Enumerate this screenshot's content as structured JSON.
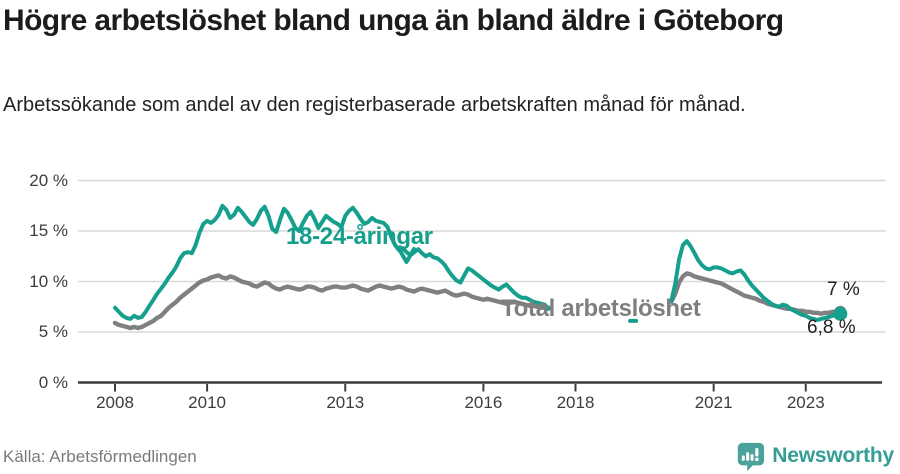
{
  "header": {
    "title": "Högre arbetslöshet bland unga än bland äldre i Göteborg",
    "subtitle": "Arbetssökande som andel av den registerbaserade arbetskraften månad för månad."
  },
  "footer": {
    "source": "Källa: Arbetsförmedlingen",
    "brand": "Newsworthy",
    "brand_icon": "newsworthy-speech-bubble-bar-chart-icon"
  },
  "colors": {
    "young_line": "#14a08c",
    "total_line": "#808080",
    "grid": "#d9d9d9",
    "axis": "#3c3c3c",
    "brand_teal": "#4aa29b",
    "title_text": "#1c1c1c",
    "axis_text": "#3d3d3d"
  },
  "chart_data": {
    "type": "line",
    "unit": "%",
    "x_axis": {
      "tick_values": [
        2008,
        2010,
        2013,
        2016,
        2018,
        2021,
        2023
      ],
      "tick_labels": [
        "2008",
        "2010",
        "2013",
        "2016",
        "2018",
        "2021",
        "2023"
      ],
      "range_years": [
        2007.2,
        2023.9
      ]
    },
    "y_axis": {
      "tick_values": [
        0,
        5,
        10,
        15,
        20
      ],
      "tick_labels": [
        "0 %",
        "5 %",
        "10 %",
        "15 %",
        "20 %"
      ],
      "range": [
        0,
        21
      ],
      "grid": true
    },
    "annotations": {
      "young": "18-24-åringar",
      "total": "Total arbetslöshet",
      "end_total": "7 %",
      "end_young": "6,8 %"
    },
    "series": [
      {
        "name": "Total arbetslöshet",
        "color": "#808080",
        "line_width": 4.4,
        "end_dot_radius": 6,
        "segments": [
          {
            "start_year": 2008,
            "start_month": 1,
            "values": [
              5.9,
              5.7,
              5.6,
              5.5,
              5.4,
              5.5,
              5.4,
              5.5,
              5.7,
              5.9,
              6.1,
              6.4,
              6.6,
              7.0,
              7.4,
              7.7,
              8.0,
              8.4,
              8.7,
              9.0,
              9.3,
              9.6,
              9.9,
              10.1,
              10.2,
              10.4,
              10.5,
              10.6,
              10.4,
              10.3,
              10.5,
              10.4,
              10.2,
              10.0,
              9.9,
              9.8,
              9.6,
              9.5,
              9.7,
              9.9,
              9.8,
              9.5,
              9.3,
              9.2,
              9.4,
              9.5,
              9.4,
              9.3,
              9.2,
              9.3,
              9.5,
              9.5,
              9.4,
              9.2,
              9.1,
              9.3,
              9.4,
              9.5,
              9.5,
              9.4,
              9.4,
              9.5,
              9.6,
              9.5,
              9.3,
              9.2,
              9.1,
              9.3,
              9.5,
              9.6,
              9.5,
              9.4,
              9.3,
              9.4,
              9.5,
              9.4,
              9.2,
              9.1,
              9.0,
              9.2,
              9.3,
              9.2,
              9.1,
              9.0,
              8.9,
              9.0,
              9.1,
              8.9,
              8.7,
              8.6,
              8.7,
              8.8,
              8.7,
              8.5,
              8.4,
              8.3,
              8.2,
              8.3,
              8.2,
              8.1,
              8.0,
              7.9,
              7.8,
              7.9,
              8.0,
              7.9,
              7.8,
              7.7,
              7.6,
              7.6,
              7.5,
              7.5,
              7.4,
              7.4
            ]
          },
          {
            "start_year": 2020,
            "start_month": 2,
            "values": [
              8.0,
              8.8,
              9.9,
              10.5,
              10.8,
              10.7,
              10.5,
              10.4,
              10.3,
              10.2,
              10.1,
              10.0,
              9.9,
              9.8,
              9.6,
              9.4,
              9.2,
              9.0,
              8.8,
              8.6,
              8.5,
              8.4,
              8.3,
              8.1,
              8.0,
              7.8,
              7.7,
              7.6,
              7.5,
              7.4,
              7.3,
              7.3,
              7.2,
              7.1,
              7.1,
              7.0,
              7.0,
              6.9,
              6.9,
              6.8,
              6.9,
              6.9,
              7.0,
              7.0,
              7.0
            ]
          }
        ]
      },
      {
        "name": "18-24-åringar",
        "color": "#14a08c",
        "line_width": 4,
        "end_dot_radius": 7,
        "segments": [
          {
            "start_year": 2008,
            "start_month": 1,
            "values": [
              7.4,
              7.0,
              6.6,
              6.4,
              6.3,
              6.6,
              6.4,
              6.5,
              7.0,
              7.6,
              8.2,
              8.8,
              9.3,
              9.8,
              10.4,
              10.9,
              11.5,
              12.3,
              12.8,
              12.9,
              12.8,
              13.6,
              14.8,
              15.7,
              16.0,
              15.8,
              16.1,
              16.6,
              17.5,
              17.1,
              16.3,
              16.6,
              17.3,
              16.9,
              16.4,
              15.9,
              15.6,
              16.2,
              17.0,
              17.4,
              16.5,
              15.2,
              14.9,
              16.1,
              17.2,
              16.8,
              16.1,
              15.3,
              15.0,
              15.8,
              16.5,
              16.9,
              16.2,
              15.3,
              15.9,
              16.5,
              16.2,
              15.9,
              15.7,
              15.4,
              16.5,
              17.0,
              17.3,
              16.8,
              16.2,
              15.7,
              15.9,
              16.3,
              16.0,
              15.9,
              15.8,
              15.4,
              14.4,
              13.6,
              13.1,
              13.3,
              12.9,
              12.6,
              12.9,
              13.2,
              12.8,
              12.5,
              12.7,
              12.4,
              12.3,
              12.0,
              11.6,
              11.0,
              10.5,
              10.1,
              9.9,
              10.6,
              11.3,
              11.1,
              10.8,
              10.5,
              10.2,
              9.9,
              9.6,
              9.4,
              9.2,
              9.5,
              9.7,
              9.3,
              8.9,
              8.6,
              8.4,
              8.4,
              8.2,
              8.0,
              7.9,
              7.8,
              7.7,
              7.3
            ]
          },
          {
            "start_year": 2019,
            "start_month": 4,
            "values": [
              6.1
            ]
          },
          {
            "start_year": 2020,
            "start_month": 2,
            "values": [
              8.1,
              9.8,
              12.2,
              13.6,
              14.0,
              13.5,
              12.8,
              12.1,
              11.6,
              11.3,
              11.2,
              11.4,
              11.4,
              11.3,
              11.1,
              10.9,
              10.8,
              11.0,
              11.1,
              10.7,
              10.1,
              9.6,
              9.2,
              8.8,
              8.4,
              8.1,
              7.8,
              7.6,
              7.5,
              7.7,
              7.6,
              7.3,
              7.1,
              6.9,
              6.7,
              6.6,
              6.4,
              6.3,
              6.2,
              6.3,
              6.4,
              6.5,
              6.6,
              6.7,
              6.8
            ]
          }
        ]
      }
    ],
    "end_values": {
      "total": "7 %",
      "young": "6,8 %"
    },
    "legend_position": "annotated-on-chart"
  }
}
